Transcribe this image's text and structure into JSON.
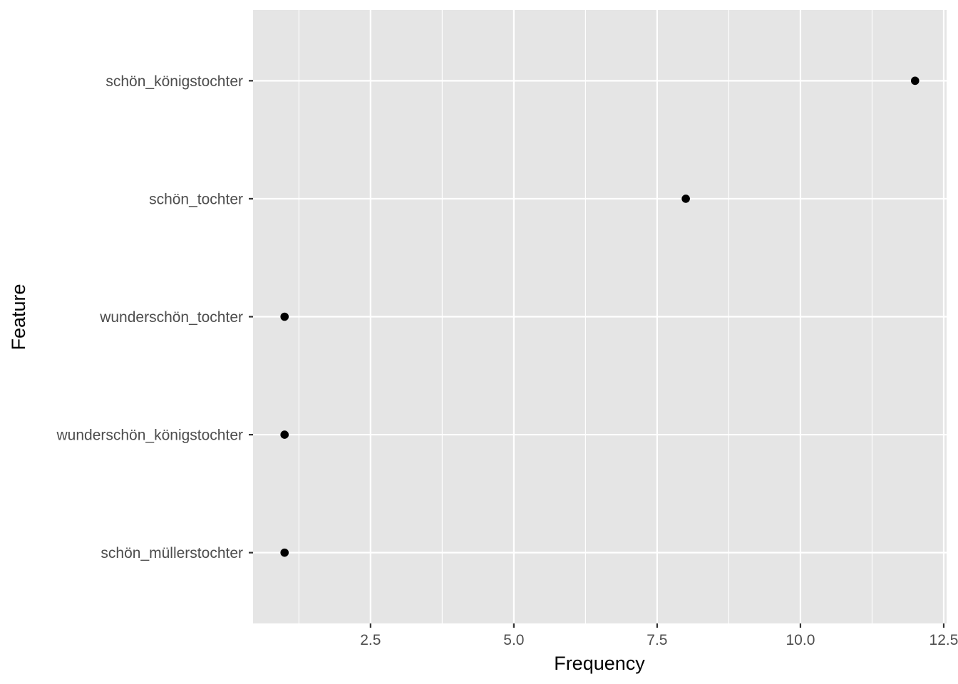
{
  "chart_data": {
    "type": "scatter",
    "title": "",
    "xlabel": "Frequency",
    "ylabel": "Feature",
    "xlim": [
      0.45,
      12.55
    ],
    "x_ticks": [
      2.5,
      5.0,
      7.5,
      10.0,
      12.5
    ],
    "x_tick_labels": [
      "2.5",
      "5.0",
      "7.5",
      "10.0",
      "12.5"
    ],
    "categories": [
      "schön_königstochter",
      "schön_tochter",
      "wunderschön_tochter",
      "wunderschön_königstochter",
      "schön_müllerstochter"
    ],
    "values": [
      12,
      8,
      1,
      1,
      1
    ],
    "grid": true,
    "legend": "none",
    "colors": {
      "panel": "#e5e5e5",
      "grid": "#ffffff",
      "point": "#000000",
      "tick_text": "#4d4d4d"
    }
  }
}
